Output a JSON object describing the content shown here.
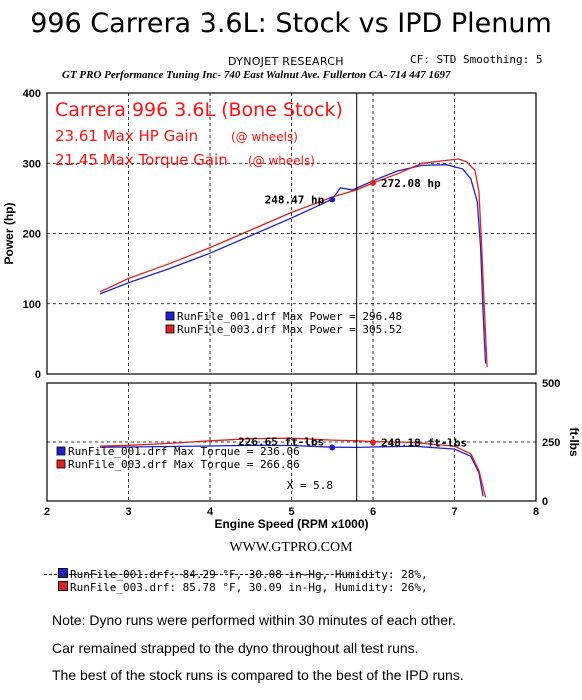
{
  "header": {
    "title": "996 Carrera 3.6L: Stock vs IPD Plenum",
    "research": "DYNOJET RESEARCH",
    "cf_smoothing": "CF: STD   Smoothing: 5",
    "shop_line": "GT PRO Performance Tuning Inc- 740 East Walnut Ave. Fullerton CA- 714 447 1697"
  },
  "chart_data": [
    {
      "type": "line",
      "ylabel": "Power (hp)",
      "xlabel": "",
      "xlim": [
        2,
        8
      ],
      "ylim": [
        0,
        400
      ],
      "yticks": [
        "0",
        "100",
        "200",
        "300",
        "400"
      ],
      "grid": true,
      "annotations": {
        "headline": "Carrera 996 3.6L (Bone Stock)",
        "hp_gain": "23.61 Max HP Gain",
        "hp_gain_note": "(@ wheels)",
        "tq_gain": "21.45 Max Torque Gain",
        "tq_gain_note": "(@ wheels)",
        "point_blue": "248.47 hp",
        "point_red": "272.08 hp"
      },
      "legend": [
        {
          "label": "RunFile_001.drf Max Power = 296.48",
          "color": "#2222cc"
        },
        {
          "label": "RunFile_003.drf Max Power = 305.52",
          "color": "#dd2222"
        }
      ],
      "series": [
        {
          "color": "#2222cc",
          "x": [
            2.65,
            3.0,
            3.5,
            4.0,
            4.5,
            5.0,
            5.3,
            5.5,
            5.6,
            5.75,
            6.0,
            6.3,
            6.6,
            6.9,
            7.1,
            7.2,
            7.28,
            7.32,
            7.35,
            7.38
          ],
          "y": [
            114,
            130,
            150,
            172,
            197,
            222,
            238,
            249,
            265,
            262,
            275,
            289,
            297,
            298,
            292,
            278,
            245,
            180,
            90,
            15
          ]
        },
        {
          "color": "#dd2222",
          "x": [
            2.65,
            3.0,
            3.5,
            4.0,
            4.5,
            5.0,
            5.3,
            5.5,
            5.8,
            6.0,
            6.3,
            6.6,
            6.9,
            7.05,
            7.15,
            7.25,
            7.3,
            7.33,
            7.36,
            7.4
          ],
          "y": [
            117,
            136,
            157,
            180,
            205,
            230,
            243,
            252,
            262,
            272,
            285,
            300,
            304,
            306,
            302,
            290,
            260,
            190,
            110,
            10
          ]
        }
      ],
      "markers": [
        {
          "x": 5.5,
          "y": 248.47,
          "color": "#2222cc"
        },
        {
          "x": 6.0,
          "y": 272.08,
          "color": "#dd2222"
        }
      ]
    },
    {
      "type": "line",
      "ylabel": "ft-lbs",
      "xlabel": "Engine Speed (RPM x1000)",
      "xlim": [
        2,
        8
      ],
      "ylim": [
        0,
        500
      ],
      "xticks": [
        "2",
        "3",
        "4",
        "5",
        "6",
        "7",
        "8"
      ],
      "yticks": [
        "0",
        "250",
        "500"
      ],
      "grid": true,
      "annotations": {
        "point_blue": "226.65 ft-lbs",
        "point_red": "248.18 ft-lbs",
        "cursor": "X = 5.8"
      },
      "legend": [
        {
          "label": "RunFile_001.drf Max Torque = 236.06",
          "color": "#2222cc"
        },
        {
          "label": "RunFile_003.drf Max Torque = 266.86",
          "color": "#dd2222"
        }
      ],
      "series": [
        {
          "color": "#2222cc",
          "x": [
            2.65,
            3.0,
            3.5,
            4.0,
            4.5,
            5.0,
            5.5,
            5.8,
            6.0,
            6.5,
            7.0,
            7.2,
            7.3,
            7.35
          ],
          "y": [
            228,
            229,
            231,
            233,
            236,
            235,
            228,
            227,
            229,
            232,
            220,
            190,
            120,
            20
          ]
        },
        {
          "color": "#dd2222",
          "x": [
            2.65,
            3.0,
            3.5,
            4.0,
            4.5,
            5.0,
            5.5,
            5.8,
            6.0,
            6.5,
            7.0,
            7.2,
            7.3,
            7.38
          ],
          "y": [
            232,
            236,
            244,
            255,
            264,
            266,
            258,
            255,
            252,
            248,
            232,
            200,
            130,
            15
          ]
        }
      ],
      "markers": [
        {
          "x": 5.5,
          "y": 226.65,
          "color": "#2222cc"
        },
        {
          "x": 6.0,
          "y": 248.18,
          "color": "#dd2222"
        }
      ],
      "cursor_x": 5.8
    }
  ],
  "footer": {
    "website": "WWW.GTPRO.COM",
    "run1": "RunFile_001.drf: 84.29 °F, 30.08 in-Hg, Humidity: 28%,",
    "run2": "RunFile_003.drf: 85.78 °F, 30.09 in-Hg, Humidity: 26%,",
    "note1": "Note: Dyno runs were performed within 30 minutes of each other.",
    "note2": "Car remained strapped to the dyno throughout all test runs.",
    "note3": "The best of the stock runs is compared to the best of the IPD runs."
  }
}
